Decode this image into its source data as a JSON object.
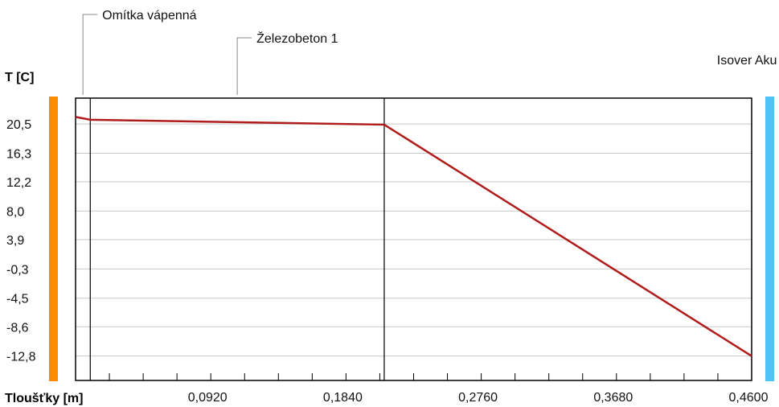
{
  "chart_data": {
    "type": "line",
    "title": "",
    "xlabel": "Tloušťky [m]",
    "ylabel": "T [C]",
    "xlim": [
      0,
      0.46
    ],
    "ylim": [
      -16.3,
      24.2
    ],
    "x_ticks": [
      0.092,
      0.184,
      0.276,
      0.368,
      0.46
    ],
    "x_tick_labels": [
      "0,0920",
      "0,1840",
      "0,2760",
      "0,3680",
      "0,4600"
    ],
    "y_ticks": [
      20.5,
      16.3,
      12.2,
      8.0,
      3.9,
      -0.3,
      -4.5,
      -8.6,
      -12.8
    ],
    "y_tick_labels": [
      "20,5",
      "16,3",
      "12,2",
      "8,0",
      "3,9",
      "-0,3",
      "-4,5",
      "-8,6",
      "-12,8"
    ],
    "grid": true,
    "layer_boundaries": [
      0.01,
      0.21
    ],
    "layers": [
      {
        "name": "Omítka vápenná",
        "x": 0.005
      },
      {
        "name": "Železobeton 1",
        "x": 0.11
      },
      {
        "name": "Isover Aku",
        "x": 0.335
      }
    ],
    "series": [
      {
        "color": "#b01c1c",
        "x": [
          0,
          0.01,
          0.21,
          0.46
        ],
        "y": [
          21.5,
          21.1,
          20.4,
          -12.8
        ]
      }
    ],
    "interior_color": "#ff8c00",
    "exterior_color": "#4fc3f7"
  }
}
